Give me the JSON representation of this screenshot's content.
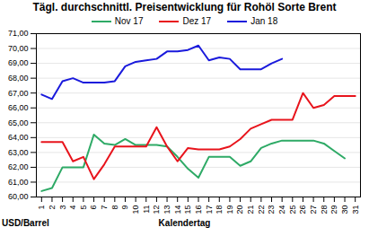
{
  "chart_data": {
    "type": "line",
    "title": "Tägl. durchschnittl. Preisentwicklung für Rohöl Sorte Brent",
    "x_label": "Kalendertag",
    "y_label": "USD/Barrel",
    "x": [
      1,
      2,
      3,
      4,
      5,
      6,
      7,
      8,
      9,
      10,
      11,
      12,
      13,
      14,
      15,
      16,
      17,
      18,
      19,
      20,
      21,
      22,
      23,
      24,
      25,
      26,
      27,
      28,
      29,
      30,
      31
    ],
    "series": [
      {
        "name": "Nov 17",
        "color": "#2eaa66",
        "values": [
          60.4,
          60.6,
          62.0,
          62.0,
          62.0,
          64.2,
          63.6,
          63.5,
          63.9,
          63.5,
          63.5,
          63.5,
          63.4,
          62.7,
          61.9,
          61.3,
          62.7,
          62.7,
          62.7,
          62.1,
          62.4,
          63.3,
          63.6,
          63.8,
          63.8,
          63.8,
          63.8,
          63.6,
          63.1,
          62.6,
          null
        ]
      },
      {
        "name": "Dez 17",
        "color": "#e8141c",
        "values": [
          63.7,
          63.7,
          63.7,
          62.4,
          62.7,
          61.2,
          62.2,
          63.4,
          63.4,
          63.4,
          63.4,
          64.7,
          63.4,
          62.4,
          63.3,
          63.2,
          63.2,
          63.2,
          63.4,
          63.9,
          64.6,
          64.9,
          65.2,
          65.2,
          65.2,
          67.0,
          66.0,
          66.2,
          66.8,
          66.8,
          66.8
        ]
      },
      {
        "name": "Jan 18",
        "color": "#1a1adc",
        "values": [
          66.9,
          66.6,
          67.8,
          68.0,
          67.7,
          67.7,
          67.7,
          67.8,
          68.8,
          69.1,
          69.2,
          69.3,
          69.8,
          69.8,
          69.9,
          70.2,
          69.2,
          69.4,
          69.3,
          68.6,
          68.6,
          68.6,
          69.0,
          69.3,
          null,
          null,
          null,
          null,
          null,
          null,
          null
        ]
      }
    ],
    "xlim": [
      0.5,
      31.5
    ],
    "xticks": [
      1,
      2,
      3,
      4,
      5,
      6,
      7,
      8,
      9,
      10,
      11,
      12,
      13,
      14,
      15,
      16,
      17,
      18,
      19,
      20,
      21,
      22,
      23,
      24,
      25,
      26,
      27,
      28,
      29,
      30,
      31
    ],
    "ylim": [
      60,
      71
    ],
    "yticks": [
      {
        "value": 60,
        "label": "60,00"
      },
      {
        "value": 61,
        "label": "61,00"
      },
      {
        "value": 62,
        "label": "62,00"
      },
      {
        "value": 63,
        "label": "63,00"
      },
      {
        "value": 64,
        "label": "64,00"
      },
      {
        "value": 65,
        "label": "65,00"
      },
      {
        "value": 66,
        "label": "66,00"
      },
      {
        "value": 67,
        "label": "67,00"
      },
      {
        "value": 68,
        "label": "68,00"
      },
      {
        "value": 69,
        "label": "69,00"
      },
      {
        "value": 70,
        "label": "70,00"
      },
      {
        "value": 71,
        "label": "71,00"
      }
    ],
    "grid": true,
    "legend": "top"
  }
}
